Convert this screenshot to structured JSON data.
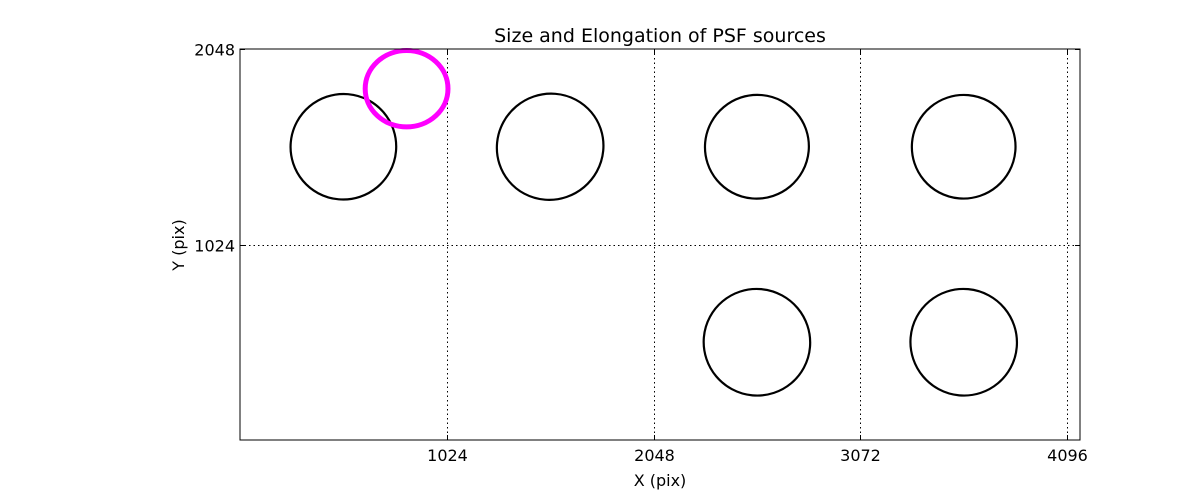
{
  "chart_data": {
    "type": "scatter",
    "title": "Size and Elongation of PSF sources",
    "xlabel": "X (pix)",
    "ylabel": "Y (pix)",
    "xlim": [
      0,
      4160
    ],
    "ylim": [
      0,
      2048
    ],
    "xticks": [
      1024,
      2048,
      3072,
      4096
    ],
    "xtick_labels": [
      "1024",
      "2048",
      "3072",
      "4096"
    ],
    "yticks": [
      1024,
      2048
    ],
    "ytick_labels": [
      "1024",
      "2048"
    ],
    "grid": true,
    "series": [
      {
        "color": "#000000",
        "points": [
          {
            "x": 512,
            "y": 1536,
            "rx": 262,
            "ry": 276,
            "angle": -40
          },
          {
            "x": 1536,
            "y": 1536,
            "rx": 266,
            "ry": 276,
            "angle": -40
          },
          {
            "x": 2560,
            "y": 1536,
            "rx": 258,
            "ry": 271,
            "angle": -40
          },
          {
            "x": 3584,
            "y": 1536,
            "rx": 257,
            "ry": 271,
            "angle": -40
          },
          {
            "x": 2560,
            "y": 512,
            "rx": 263,
            "ry": 280,
            "angle": -40
          },
          {
            "x": 3584,
            "y": 512,
            "rx": 263,
            "ry": 280,
            "angle": -40
          }
        ]
      },
      {
        "color": "#ff00ff",
        "points": [
          {
            "x": 825,
            "y": 1840,
            "rx": 205,
            "ry": 200,
            "angle": 0
          }
        ]
      }
    ]
  }
}
